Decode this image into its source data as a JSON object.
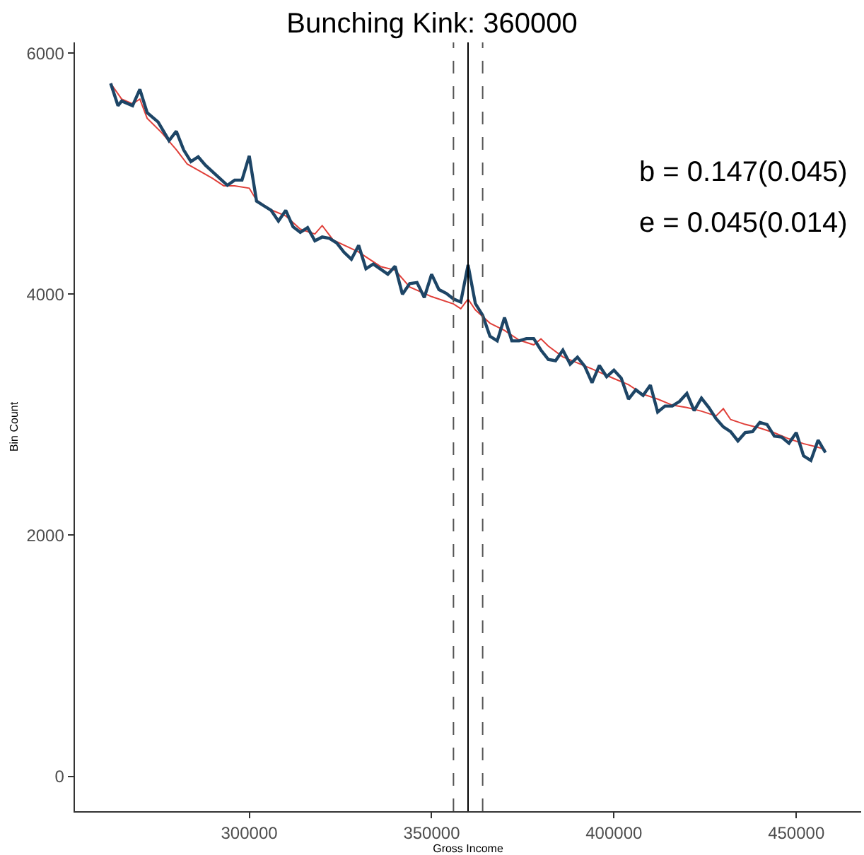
{
  "chart_data": {
    "type": "line",
    "title": "Bunching Kink: 360000",
    "xlabel": "Gross Income",
    "ylabel": "Bin Count",
    "xlim": [
      252200,
      467800
    ],
    "xticks": [
      300000,
      350000,
      400000,
      450000
    ],
    "ylim": [
      -290,
      6090
    ],
    "yticks": [
      0,
      2000,
      4000,
      6000
    ],
    "series": [
      {
        "color": "#1d4566",
        "x": [
          262000,
          264000,
          265000,
          268000,
          270000,
          272000,
          275000,
          278000,
          280000,
          282000,
          284000,
          286000,
          288000,
          294000,
          296000,
          298000,
          300000,
          302000,
          304000,
          306000,
          308000,
          310000,
          312000,
          314000,
          316000,
          318000,
          320000,
          322000,
          324000,
          326000,
          328000,
          330000,
          332000,
          334000,
          338000,
          340000,
          342000,
          344000,
          346000,
          348000,
          350000,
          352000,
          354000,
          356000,
          358000,
          360000,
          362000,
          364000,
          366000,
          368000,
          370000,
          372000,
          374000,
          376000,
          378000,
          380000,
          382000,
          384000,
          386000,
          388000,
          390000,
          392000,
          394000,
          396000,
          398000,
          400000,
          402000,
          404000,
          406000,
          408000,
          410000,
          412000,
          414000,
          416000,
          418000,
          420000,
          422000,
          424000,
          426000,
          428000,
          430000,
          432000,
          434000,
          436000,
          438000,
          440000,
          442000,
          444000,
          446000,
          448000,
          450000,
          452000,
          454000,
          456000,
          458000
        ],
        "values": [
          5750,
          5565,
          5603,
          5565,
          5701,
          5507,
          5430,
          5275,
          5353,
          5198,
          5101,
          5140,
          5070,
          4904,
          4947,
          4947,
          5148,
          4773,
          4734,
          4696,
          4607,
          4696,
          4560,
          4514,
          4553,
          4444,
          4475,
          4464,
          4425,
          4348,
          4290,
          4406,
          4212,
          4251,
          4166,
          4232,
          4000,
          4089,
          4097,
          3973,
          4166,
          4039,
          4008,
          3961,
          3935,
          4244,
          3923,
          3826,
          3652,
          3613,
          3806,
          3613,
          3613,
          3632,
          3632,
          3536,
          3459,
          3448,
          3536,
          3420,
          3478,
          3402,
          3266,
          3409,
          3316,
          3370,
          3304,
          3130,
          3207,
          3161,
          3246,
          3022,
          3072,
          3072,
          3111,
          3177,
          3034,
          3138,
          3061,
          2968,
          2899,
          2860,
          2783,
          2852,
          2860,
          2937,
          2918,
          2822,
          2814,
          2763,
          2852,
          2659,
          2620,
          2790,
          2686
        ]
      },
      {
        "color": "#e0403a",
        "x": [
          262000,
          265000,
          268000,
          270000,
          272000,
          276000,
          280000,
          283000,
          286000,
          290000,
          293000,
          296000,
          300000,
          302000,
          306000,
          310000,
          314000,
          318000,
          320000,
          323000,
          330000,
          336000,
          340000,
          344000,
          350000,
          356000,
          358000,
          360000,
          362000,
          366000,
          370000,
          374000,
          378000,
          380000,
          382000,
          386000,
          390000,
          394000,
          400000,
          404000,
          408000,
          412000,
          416000,
          420000,
          424000,
          428000,
          430000,
          432000,
          436000,
          440000,
          444000,
          448000,
          452000,
          456000,
          458000
        ],
        "values": [
          5750,
          5620,
          5580,
          5620,
          5460,
          5340,
          5200,
          5080,
          5030,
          4960,
          4900,
          4900,
          4880,
          4780,
          4700,
          4650,
          4540,
          4500,
          4570,
          4450,
          4350,
          4230,
          4200,
          4060,
          3980,
          3920,
          3880,
          3960,
          3870,
          3760,
          3700,
          3620,
          3580,
          3630,
          3570,
          3480,
          3430,
          3380,
          3300,
          3250,
          3170,
          3130,
          3080,
          3060,
          3030,
          2990,
          3050,
          2960,
          2920,
          2890,
          2850,
          2800,
          2760,
          2730,
          2710
        ]
      }
    ],
    "ref_lines": [
      {
        "axis": "x",
        "value": 360000,
        "line_style": "solid",
        "color": "#000000"
      },
      {
        "axis": "x",
        "value": 356000,
        "line_style": "dashed",
        "color": "#555555"
      },
      {
        "axis": "x",
        "value": 364000,
        "line_style": "dashed",
        "color": "#555555"
      }
    ],
    "annotations": [
      "b = 0.147(0.045)",
      "e = 0.045(0.014)"
    ]
  }
}
